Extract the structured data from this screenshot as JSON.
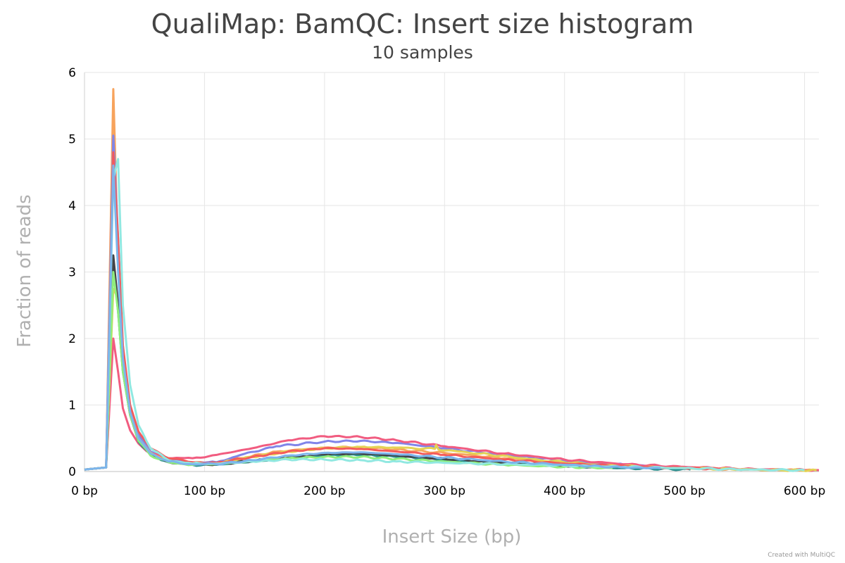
{
  "chart_data": {
    "type": "line",
    "title": "QualiMap: BamQC: Insert size histogram",
    "subtitle": "10 samples",
    "xlabel": "Insert Size (bp)",
    "ylabel": "Fraction of reads",
    "xlim": [
      0,
      612
    ],
    "ylim": [
      0,
      6
    ],
    "x_ticks": [
      0,
      100,
      200,
      300,
      400,
      500,
      600
    ],
    "x_tick_labels": [
      "0 bp",
      "100 bp",
      "200 bp",
      "300 bp",
      "400 bp",
      "500 bp",
      "600 bp"
    ],
    "y_ticks": [
      0,
      1,
      2,
      3,
      4,
      5,
      6
    ],
    "y_tick_labels": [
      "0",
      "1",
      "2",
      "3",
      "4",
      "5",
      "6"
    ],
    "grid": true,
    "series": [
      {
        "color": "#f7a35c",
        "points": [
          [
            0,
            0.03
          ],
          [
            18,
            0.06
          ],
          [
            24,
            5.75
          ],
          [
            28,
            3.2
          ],
          [
            32,
            1.6
          ],
          [
            38,
            0.9
          ],
          [
            45,
            0.55
          ],
          [
            55,
            0.3
          ],
          [
            70,
            0.18
          ],
          [
            90,
            0.13
          ],
          [
            110,
            0.13
          ],
          [
            130,
            0.2
          ],
          [
            160,
            0.3
          ],
          [
            200,
            0.36
          ],
          [
            230,
            0.37
          ],
          [
            260,
            0.33
          ],
          [
            300,
            0.28
          ],
          [
            350,
            0.2
          ],
          [
            400,
            0.13
          ],
          [
            450,
            0.08
          ],
          [
            500,
            0.05
          ],
          [
            550,
            0.03
          ],
          [
            610,
            0.02
          ]
        ]
      },
      {
        "color": "#8085e9",
        "points": [
          [
            0,
            0.03
          ],
          [
            18,
            0.06
          ],
          [
            24,
            5.05
          ],
          [
            28,
            3.5
          ],
          [
            32,
            1.8
          ],
          [
            38,
            0.95
          ],
          [
            45,
            0.55
          ],
          [
            55,
            0.3
          ],
          [
            70,
            0.18
          ],
          [
            90,
            0.13
          ],
          [
            110,
            0.14
          ],
          [
            130,
            0.25
          ],
          [
            160,
            0.38
          ],
          [
            200,
            0.45
          ],
          [
            230,
            0.46
          ],
          [
            260,
            0.43
          ],
          [
            300,
            0.35
          ],
          [
            350,
            0.25
          ],
          [
            400,
            0.16
          ],
          [
            450,
            0.1
          ],
          [
            490,
            0.06
          ]
        ]
      },
      {
        "color": "#f15c80",
        "points": [
          [
            0,
            0.03
          ],
          [
            18,
            0.06
          ],
          [
            24,
            2.0
          ],
          [
            28,
            1.5
          ],
          [
            32,
            0.95
          ],
          [
            38,
            0.62
          ],
          [
            45,
            0.42
          ],
          [
            55,
            0.27
          ],
          [
            70,
            0.2
          ],
          [
            90,
            0.2
          ],
          [
            110,
            0.25
          ],
          [
            140,
            0.35
          ],
          [
            170,
            0.47
          ],
          [
            200,
            0.53
          ],
          [
            230,
            0.52
          ],
          [
            260,
            0.47
          ],
          [
            300,
            0.38
          ],
          [
            350,
            0.27
          ],
          [
            400,
            0.18
          ],
          [
            450,
            0.11
          ],
          [
            500,
            0.07
          ],
          [
            550,
            0.04
          ],
          [
            612,
            0.02
          ]
        ]
      },
      {
        "color": "#e4d354",
        "points": [
          [
            0,
            0.03
          ],
          [
            18,
            0.06
          ],
          [
            24,
            2.75
          ],
          [
            28,
            2.6
          ],
          [
            32,
            1.6
          ],
          [
            38,
            0.9
          ],
          [
            45,
            0.5
          ],
          [
            55,
            0.28
          ],
          [
            70,
            0.15
          ],
          [
            90,
            0.11
          ],
          [
            110,
            0.12
          ],
          [
            140,
            0.22
          ],
          [
            170,
            0.3
          ],
          [
            200,
            0.35
          ],
          [
            230,
            0.37
          ],
          [
            260,
            0.36
          ],
          [
            292,
            0.34
          ],
          [
            293,
            0.4
          ],
          [
            295,
            0.33
          ],
          [
            330,
            0.27
          ],
          [
            380,
            0.17
          ],
          [
            430,
            0.1
          ],
          [
            480,
            0.06
          ],
          [
            530,
            0.04
          ],
          [
            580,
            0.02
          ],
          [
            610,
            0.02
          ]
        ]
      },
      {
        "color": "#2b908f",
        "points": [
          [
            0,
            0.03
          ],
          [
            18,
            0.06
          ],
          [
            24,
            3.1
          ],
          [
            28,
            2.4
          ],
          [
            32,
            1.5
          ],
          [
            38,
            0.85
          ],
          [
            45,
            0.45
          ],
          [
            55,
            0.25
          ],
          [
            70,
            0.14
          ],
          [
            90,
            0.1
          ],
          [
            110,
            0.1
          ],
          [
            140,
            0.15
          ],
          [
            170,
            0.2
          ],
          [
            200,
            0.24
          ],
          [
            230,
            0.25
          ],
          [
            260,
            0.22
          ],
          [
            300,
            0.18
          ],
          [
            350,
            0.12
          ],
          [
            400,
            0.08
          ],
          [
            450,
            0.05
          ],
          [
            505,
            0.03
          ]
        ]
      },
      {
        "color": "#434348",
        "points": [
          [
            0,
            0.03
          ],
          [
            18,
            0.06
          ],
          [
            24,
            3.25
          ],
          [
            28,
            2.5
          ],
          [
            32,
            1.55
          ],
          [
            38,
            0.85
          ],
          [
            45,
            0.48
          ],
          [
            55,
            0.25
          ],
          [
            70,
            0.14
          ],
          [
            90,
            0.11
          ],
          [
            110,
            0.11
          ],
          [
            140,
            0.16
          ],
          [
            170,
            0.21
          ],
          [
            200,
            0.26
          ],
          [
            230,
            0.27
          ],
          [
            260,
            0.24
          ],
          [
            300,
            0.19
          ],
          [
            350,
            0.13
          ],
          [
            400,
            0.08
          ],
          [
            430,
            0.06
          ]
        ]
      },
      {
        "color": "#90ed7d",
        "points": [
          [
            0,
            0.03
          ],
          [
            18,
            0.06
          ],
          [
            24,
            3.0
          ],
          [
            28,
            2.4
          ],
          [
            32,
            1.5
          ],
          [
            38,
            0.85
          ],
          [
            45,
            0.46
          ],
          [
            55,
            0.24
          ],
          [
            70,
            0.14
          ],
          [
            90,
            0.1
          ],
          [
            110,
            0.11
          ],
          [
            140,
            0.16
          ],
          [
            170,
            0.2
          ],
          [
            200,
            0.22
          ],
          [
            230,
            0.22
          ],
          [
            260,
            0.19
          ],
          [
            300,
            0.15
          ],
          [
            350,
            0.1
          ],
          [
            400,
            0.07
          ],
          [
            440,
            0.05
          ]
        ]
      },
      {
        "color": "#f45b5b",
        "points": [
          [
            0,
            0.03
          ],
          [
            18,
            0.06
          ],
          [
            24,
            4.8
          ],
          [
            28,
            3.5
          ],
          [
            32,
            1.9
          ],
          [
            38,
            1.0
          ],
          [
            45,
            0.6
          ],
          [
            55,
            0.35
          ],
          [
            70,
            0.2
          ],
          [
            90,
            0.14
          ],
          [
            110,
            0.13
          ],
          [
            140,
            0.22
          ],
          [
            170,
            0.3
          ],
          [
            200,
            0.35
          ],
          [
            230,
            0.34
          ],
          [
            260,
            0.3
          ],
          [
            300,
            0.25
          ],
          [
            350,
            0.18
          ],
          [
            400,
            0.12
          ],
          [
            450,
            0.08
          ],
          [
            500,
            0.05
          ],
          [
            530,
            0.04
          ]
        ]
      },
      {
        "color": "#91e8e1",
        "points": [
          [
            0,
            0.03
          ],
          [
            18,
            0.06
          ],
          [
            24,
            4.4
          ],
          [
            28,
            4.7
          ],
          [
            32,
            2.5
          ],
          [
            38,
            1.3
          ],
          [
            45,
            0.7
          ],
          [
            55,
            0.35
          ],
          [
            70,
            0.17
          ],
          [
            90,
            0.12
          ],
          [
            110,
            0.12
          ],
          [
            140,
            0.15
          ],
          [
            170,
            0.18
          ],
          [
            200,
            0.18
          ],
          [
            230,
            0.17
          ],
          [
            260,
            0.15
          ],
          [
            300,
            0.13
          ],
          [
            350,
            0.11
          ],
          [
            400,
            0.09
          ],
          [
            450,
            0.07
          ],
          [
            500,
            0.05
          ],
          [
            550,
            0.03
          ],
          [
            600,
            0.02
          ]
        ]
      },
      {
        "color": "#7cb5ec",
        "points": [
          [
            0,
            0.03
          ],
          [
            18,
            0.06
          ],
          [
            24,
            4.6
          ],
          [
            28,
            3.0
          ],
          [
            32,
            1.7
          ],
          [
            38,
            0.9
          ],
          [
            45,
            0.5
          ],
          [
            55,
            0.27
          ],
          [
            70,
            0.15
          ],
          [
            90,
            0.11
          ],
          [
            110,
            0.11
          ],
          [
            140,
            0.17
          ],
          [
            170,
            0.24
          ],
          [
            200,
            0.28
          ],
          [
            230,
            0.29
          ],
          [
            260,
            0.26
          ],
          [
            300,
            0.21
          ],
          [
            350,
            0.15
          ],
          [
            400,
            0.1
          ],
          [
            450,
            0.06
          ],
          [
            480,
            0.05
          ]
        ]
      }
    ]
  },
  "credit": "Created with MultiQC"
}
